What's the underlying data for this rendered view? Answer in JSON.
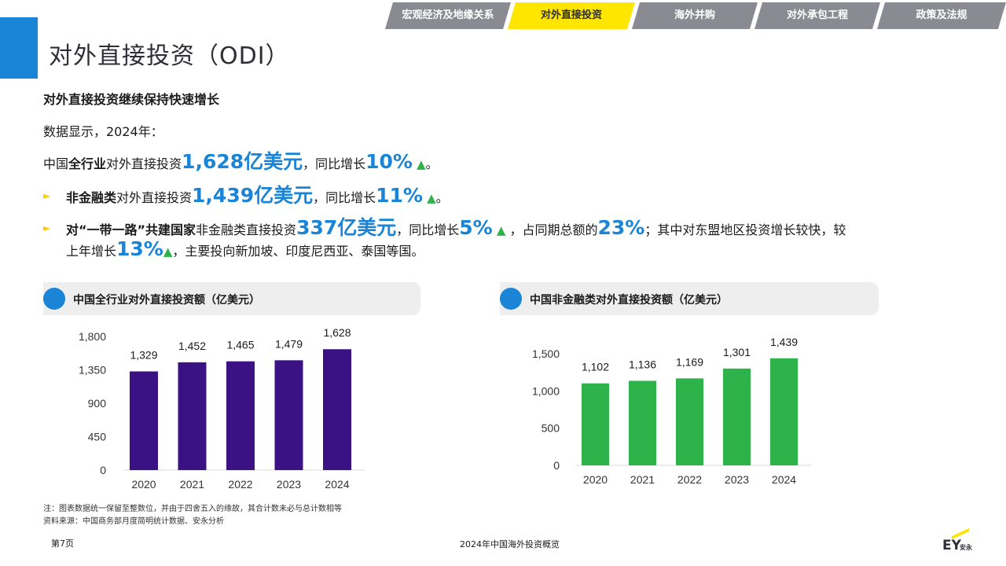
{
  "nav": {
    "tabs": [
      {
        "label": "宏观经济及地缘关系",
        "active": false
      },
      {
        "label": "对外直接投资",
        "active": true
      },
      {
        "label": "海外并购",
        "active": false
      },
      {
        "label": "对外承包工程",
        "active": false
      },
      {
        "label": "政策及法规",
        "active": false
      }
    ]
  },
  "title": "对外直接投资（ODI）",
  "subheading": "对外直接投资继续保持快速增长",
  "intro": "数据显示，2024年：",
  "line1": {
    "a": "中国",
    "b": "全行业",
    "c": "对外直接投资",
    "big1": "1,628亿美元",
    "d": "，同比增长",
    "big2": "10%",
    "end": "。"
  },
  "line2": {
    "b": "非金融类",
    "c": "对外直接投资",
    "big1": "1,439亿美元",
    "d": "，同比增长",
    "big2": "11%",
    "end": "。"
  },
  "line3": {
    "b": "对“一带一路”共建国家",
    "c": "非金融类直接投资",
    "big1": "337亿美元",
    "d": "，同比增长",
    "big2": "5%",
    "e": "，占同期总额的",
    "big3": "23%",
    "f": "；其中对东盟地区投资增长较快，较",
    "g": "上年增长",
    "big4": "13%",
    "h": "，主要投向新加坡、印度尼西亚、泰国等国。"
  },
  "up_arrow": "▲",
  "bullet_icon": "►",
  "colors": {
    "accent": "#1a84d6",
    "purple": "#3b1283",
    "green": "#2db34a",
    "yellow": "#ffe600",
    "up": "#2db34a"
  },
  "chart_data": [
    {
      "type": "bar",
      "title": "中国全行业对外直接投资额（亿美元）",
      "categories": [
        "2020",
        "2021",
        "2022",
        "2023",
        "2024"
      ],
      "values": [
        1329,
        1452,
        1465,
        1479,
        1628
      ],
      "labels": [
        "1,329",
        "1,452",
        "1,465",
        "1,479",
        "1,628"
      ],
      "yticks": [
        "0",
        "450",
        "900",
        "1,350",
        "1,800"
      ],
      "ytick_values": [
        0,
        450,
        900,
        1350,
        1800
      ],
      "ylim": [
        0,
        1800
      ],
      "color": "#3b1283"
    },
    {
      "type": "bar",
      "title": "中国非金融类对外直接投资额（亿美元）",
      "categories": [
        "2020",
        "2021",
        "2022",
        "2023",
        "2024"
      ],
      "values": [
        1102,
        1136,
        1169,
        1301,
        1439
      ],
      "labels": [
        "1,102",
        "1,136",
        "1,169",
        "1,301",
        "1,439"
      ],
      "yticks": [
        "0",
        "500",
        "1,000",
        "1,500"
      ],
      "ytick_values": [
        0,
        500,
        1000,
        1500
      ],
      "ylim": [
        0,
        1500
      ],
      "color": "#2db34a"
    }
  ],
  "notes": {
    "note": "注：图表数据统一保留至整数位，并由于四舍五入的缘故，其合计数未必与总计数相等",
    "source": "资料来源：中国商务部月度简明统计数据、安永分析"
  },
  "footer": {
    "page": "第7页",
    "center": "2024年中国海外投资概览",
    "logo_text": "EY",
    "logo_sub": "安永"
  }
}
